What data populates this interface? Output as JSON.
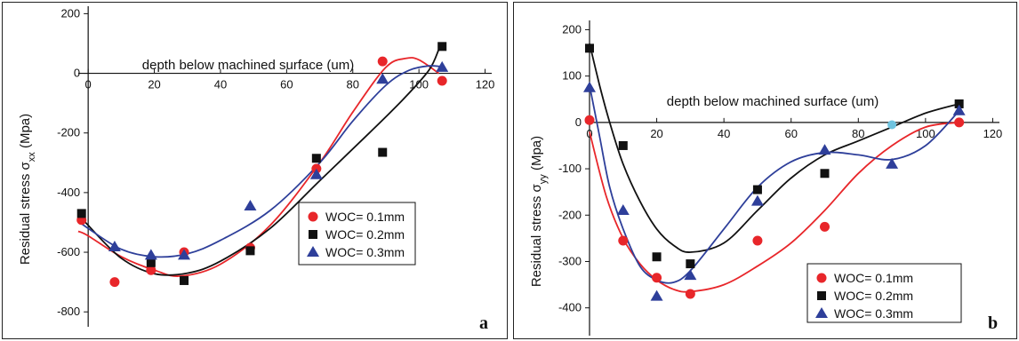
{
  "colors": {
    "s01": "#e8262a",
    "s02": "#111111",
    "s03": "#2e3f9a",
    "extra": "#6fc3df"
  },
  "chart_data": [
    {
      "type": "scatter",
      "panel_label": "a",
      "xlabel": "depth below machined surface (um)",
      "ylabel_main": "Residual stress σ",
      "ylabel_sub": "xx",
      "ylabel_unit": " (Mpa)",
      "xlim": [
        -3,
        122
      ],
      "ylim": [
        -850,
        225
      ],
      "xticks": [
        0,
        20,
        40,
        60,
        80,
        100,
        120
      ],
      "yticks": [
        -800,
        -600,
        -400,
        -200,
        0,
        200
      ],
      "legend_position": "center-right",
      "series": [
        {
          "name": "WOC= 0.1mm",
          "marker": "circle",
          "color": "#e8262a",
          "x": [
            -2,
            8,
            19,
            29,
            49,
            69,
            89,
            107
          ],
          "y": [
            -492,
            -700,
            -660,
            -600,
            -585,
            -320,
            40,
            -25
          ],
          "fit_x": [
            -3,
            0,
            10,
            20,
            28,
            40,
            55,
            70,
            80,
            90,
            96,
            100,
            106
          ],
          "fit_y": [
            -530,
            -545,
            -615,
            -660,
            -680,
            -640,
            -510,
            -300,
            -130,
            20,
            50,
            45,
            0
          ]
        },
        {
          "name": "WOC= 0.2mm",
          "marker": "square",
          "color": "#111111",
          "x": [
            -2,
            19,
            29,
            49,
            69,
            89,
            107
          ],
          "y": [
            -470,
            -635,
            -695,
            -595,
            -285,
            -265,
            90
          ],
          "fit_x": [
            -3,
            0,
            10,
            20,
            30,
            40,
            55,
            70,
            85,
            95,
            103,
            106
          ],
          "fit_y": [
            -470,
            -510,
            -620,
            -672,
            -670,
            -630,
            -520,
            -360,
            -200,
            -90,
            10,
            80
          ]
        },
        {
          "name": "WOC= 0.3mm",
          "marker": "triangle",
          "color": "#2e3f9a",
          "x": [
            8,
            19,
            29,
            49,
            69,
            89,
            107
          ],
          "y": [
            -582,
            -610,
            -610,
            -445,
            -340,
            -20,
            20
          ],
          "fit_x": [
            -3,
            0,
            10,
            20,
            30,
            40,
            55,
            70,
            80,
            90,
            97,
            103,
            107
          ],
          "fit_y": [
            -495,
            -520,
            -590,
            -615,
            -605,
            -560,
            -460,
            -300,
            -160,
            -40,
            10,
            25,
            22
          ]
        }
      ]
    },
    {
      "type": "scatter",
      "panel_label": "b",
      "xlabel": "depth below machined surface (um)",
      "ylabel_main": "Residual stress σ",
      "ylabel_sub": "yy",
      "ylabel_unit": " (Mpa)",
      "xlim": [
        0,
        122
      ],
      "ylim": [
        -460,
        220
      ],
      "xticks": [
        0,
        20,
        40,
        60,
        80,
        100,
        120
      ],
      "yticks": [
        -400,
        -300,
        -200,
        -100,
        0,
        100,
        200
      ],
      "legend_position": "bottom-right",
      "series": [
        {
          "name": "WOC= 0.1mm",
          "marker": "circle",
          "color": "#e8262a",
          "x": [
            0,
            10,
            20,
            30,
            50,
            70,
            110
          ],
          "y": [
            5,
            -255,
            -335,
            -370,
            -255,
            -225,
            0
          ],
          "fit_x": [
            0,
            5,
            10,
            15,
            20,
            25,
            30,
            40,
            50,
            60,
            70,
            80,
            90,
            100,
            110
          ],
          "fit_y": [
            -20,
            -160,
            -250,
            -305,
            -340,
            -360,
            -365,
            -350,
            -310,
            -260,
            -190,
            -110,
            -50,
            -10,
            0
          ]
        },
        {
          "name": "WOC= 0.2mm",
          "marker": "square",
          "color": "#111111",
          "x": [
            0,
            10,
            20,
            30,
            50,
            70,
            110
          ],
          "y": [
            160,
            -50,
            -290,
            -305,
            -145,
            -110,
            40
          ],
          "fit_x": [
            0,
            3,
            6,
            10,
            15,
            20,
            25,
            30,
            40,
            50,
            60,
            70,
            80,
            90,
            100,
            110
          ],
          "fit_y": [
            170,
            80,
            0,
            -90,
            -170,
            -230,
            -265,
            -280,
            -260,
            -190,
            -120,
            -70,
            -40,
            -10,
            20,
            40
          ]
        },
        {
          "name": "WOC= 0.3mm",
          "marker": "triangle",
          "color": "#2e3f9a",
          "x": [
            0,
            10,
            20,
            30,
            50,
            70,
            90,
            110
          ],
          "y": [
            75,
            -190,
            -375,
            -330,
            -170,
            -60,
            -90,
            25
          ],
          "fit_x": [
            0,
            3,
            6,
            10,
            15,
            20,
            25,
            30,
            40,
            50,
            60,
            70,
            80,
            90,
            100,
            110
          ],
          "fit_y": [
            80,
            -30,
            -140,
            -230,
            -310,
            -340,
            -345,
            -320,
            -230,
            -140,
            -85,
            -65,
            -70,
            -80,
            -50,
            25
          ]
        }
      ],
      "extra_points": [
        {
          "x": 90,
          "y": -5
        }
      ]
    }
  ]
}
